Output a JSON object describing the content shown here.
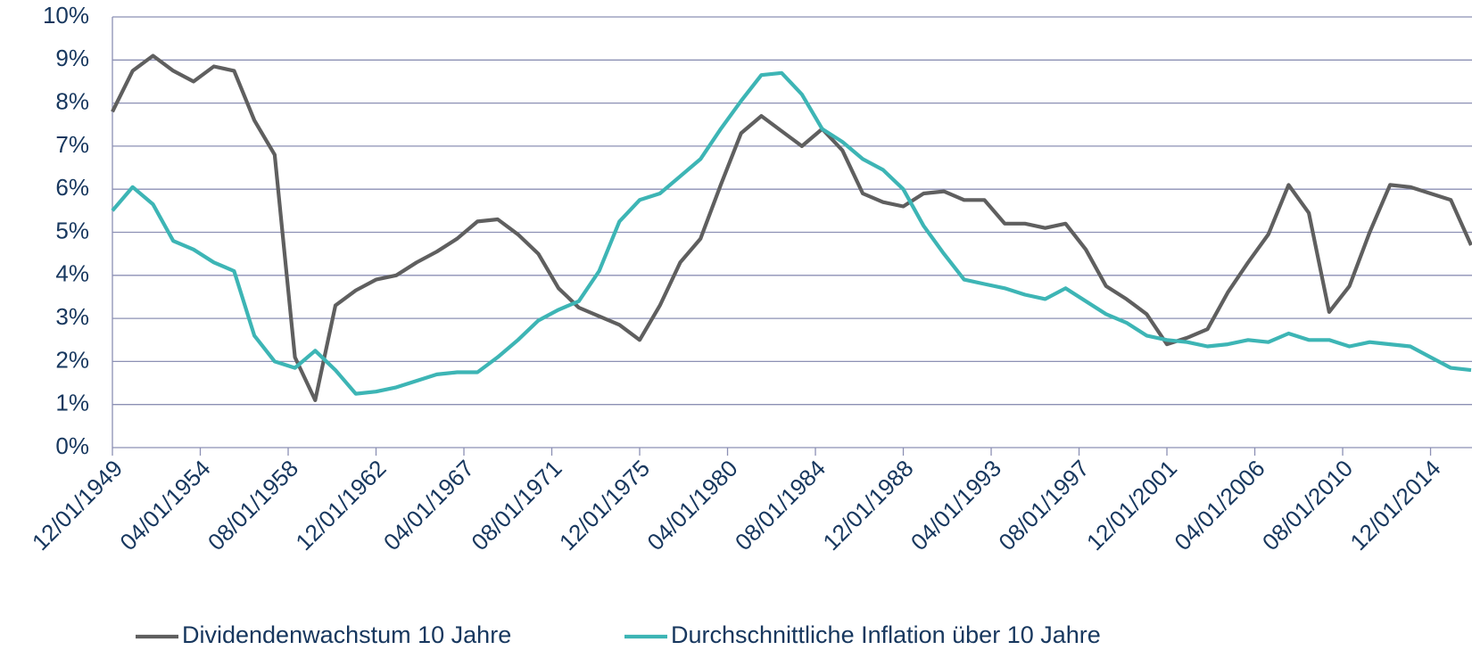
{
  "chart_data": {
    "type": "line",
    "x": [
      "12/01/1949",
      "12/01/1950",
      "12/01/1951",
      "12/01/1952",
      "12/01/1953",
      "12/01/1954",
      "12/01/1955",
      "12/01/1956",
      "12/01/1957",
      "12/01/1958",
      "12/01/1959",
      "12/01/1960",
      "12/01/1961",
      "12/01/1962",
      "12/01/1963",
      "12/01/1964",
      "12/01/1965",
      "12/01/1966",
      "12/01/1967",
      "12/01/1968",
      "12/01/1969",
      "12/01/1970",
      "12/01/1971",
      "12/01/1972",
      "12/01/1973",
      "12/01/1974",
      "12/01/1975",
      "12/01/1976",
      "12/01/1977",
      "12/01/1978",
      "12/01/1979",
      "12/01/1980",
      "12/01/1981",
      "12/01/1982",
      "12/01/1983",
      "12/01/1984",
      "12/01/1985",
      "12/01/1986",
      "12/01/1987",
      "12/01/1988",
      "12/01/1989",
      "12/01/1990",
      "12/01/1991",
      "12/01/1992",
      "12/01/1993",
      "12/01/1994",
      "12/01/1995",
      "12/01/1996",
      "12/01/1997",
      "12/01/1998",
      "12/01/1999",
      "12/01/2000",
      "12/01/2001",
      "12/01/2002",
      "12/01/2003",
      "12/01/2004",
      "12/01/2005",
      "12/01/2006",
      "12/01/2007",
      "12/01/2008",
      "12/01/2009",
      "12/01/2010",
      "12/01/2011",
      "12/01/2012",
      "12/01/2013",
      "12/01/2014",
      "12/01/2015",
      "12/01/2016"
    ],
    "series": [
      {
        "name": "Dividendenwachstum 10  Jahre",
        "color": "#5f5f5f",
        "values": [
          7.8,
          8.75,
          9.1,
          8.75,
          8.5,
          8.85,
          8.75,
          7.6,
          6.8,
          2.1,
          1.1,
          3.3,
          3.65,
          3.9,
          4.0,
          4.3,
          4.55,
          4.85,
          5.25,
          5.3,
          4.95,
          4.5,
          3.7,
          3.25,
          3.05,
          2.85,
          2.5,
          3.3,
          4.3,
          4.85,
          6.1,
          7.3,
          7.7,
          7.35,
          7.0,
          7.4,
          6.9,
          5.9,
          5.7,
          5.6,
          5.9,
          5.95,
          5.75,
          5.75,
          5.2,
          5.2,
          5.1,
          5.2,
          4.6,
          3.75,
          3.45,
          3.1,
          2.4,
          2.55,
          2.75,
          3.6,
          4.3,
          4.95,
          6.1,
          5.45,
          3.15,
          3.75,
          5.0,
          6.1,
          6.05,
          5.9,
          5.75,
          4.7
        ]
      },
      {
        "name": "Durchschnittliche Inflation über 10 Jahre",
        "color": "#3db5b5",
        "values": [
          5.5,
          6.05,
          5.65,
          4.8,
          4.6,
          4.3,
          4.1,
          2.6,
          2.0,
          1.85,
          2.25,
          1.8,
          1.25,
          1.3,
          1.4,
          1.55,
          1.7,
          1.75,
          1.75,
          2.1,
          2.5,
          2.95,
          3.2,
          3.4,
          4.1,
          5.25,
          5.75,
          5.9,
          6.3,
          6.7,
          7.4,
          8.05,
          8.65,
          8.7,
          8.2,
          7.4,
          7.1,
          6.7,
          6.45,
          6.0,
          5.15,
          4.5,
          3.9,
          3.8,
          3.7,
          3.55,
          3.45,
          3.7,
          3.4,
          3.1,
          2.9,
          2.6,
          2.5,
          2.45,
          2.35,
          2.4,
          2.5,
          2.45,
          2.65,
          2.5,
          2.5,
          2.35,
          2.45,
          2.4,
          2.35,
          2.1,
          1.85,
          1.8
        ]
      }
    ],
    "xlim": [
      "12/01/1949",
      "12/01/2016"
    ],
    "xticks": [
      "12/01/1949",
      "04/01/1954",
      "08/01/1958",
      "12/01/1962",
      "04/01/1967",
      "08/01/1971",
      "12/01/1975",
      "04/01/1980",
      "08/01/1984",
      "12/01/1988",
      "04/01/1993",
      "08/01/1997",
      "12/01/2001",
      "04/01/2006",
      "08/01/2010",
      "12/01/2014"
    ],
    "ylim": [
      0,
      10
    ],
    "yticks": [
      {
        "value": 0,
        "label": "0%"
      },
      {
        "value": 1,
        "label": "1%"
      },
      {
        "value": 2,
        "label": "2%"
      },
      {
        "value": 3,
        "label": "3%"
      },
      {
        "value": 4,
        "label": "4%"
      },
      {
        "value": 5,
        "label": "5%"
      },
      {
        "value": 6,
        "label": "6%"
      },
      {
        "value": 7,
        "label": "7%"
      },
      {
        "value": 8,
        "label": "8%"
      },
      {
        "value": 9,
        "label": "9%"
      },
      {
        "value": 10,
        "label": "10%"
      }
    ],
    "grid": true,
    "legend": "bottom"
  }
}
